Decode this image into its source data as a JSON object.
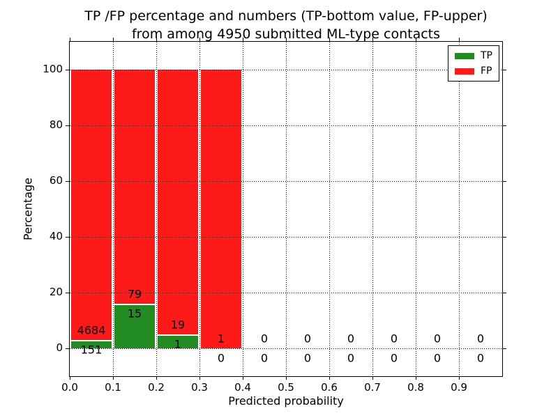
{
  "chart_data": {
    "type": "bar",
    "stacked": true,
    "normalized_per_bin_percent": true,
    "title_line1": "TP /FP percentage and numbers (TP-bottom value, FP-upper)",
    "title_line2": "from among 4950 submitted ML-type contacts",
    "xlabel": "Predicted probability",
    "ylabel": "Percentage",
    "x_tick_labels": [
      "0.0",
      "0.1",
      "0.2",
      "0.3",
      "0.4",
      "0.5",
      "0.6",
      "0.7",
      "0.8",
      "0.9"
    ],
    "y_ticks": [
      0,
      20,
      40,
      60,
      80,
      100
    ],
    "xlim": [
      0.0,
      1.0
    ],
    "ylim": [
      -10,
      110
    ],
    "bin_width": 0.1,
    "grid": true,
    "total_submitted": 4950,
    "legend": {
      "position": "upper right",
      "entries": [
        {
          "label": "TP",
          "color": "#228b22"
        },
        {
          "label": "FP",
          "color": "#ff1a1a"
        }
      ]
    },
    "bins": [
      {
        "x_start": 0.0,
        "x_end": 0.1,
        "tp": 151,
        "fp": 4684
      },
      {
        "x_start": 0.1,
        "x_end": 0.2,
        "tp": 15,
        "fp": 79
      },
      {
        "x_start": 0.2,
        "x_end": 0.3,
        "tp": 1,
        "fp": 19
      },
      {
        "x_start": 0.3,
        "x_end": 0.4,
        "tp": 0,
        "fp": 1
      },
      {
        "x_start": 0.4,
        "x_end": 0.5,
        "tp": 0,
        "fp": 0
      },
      {
        "x_start": 0.5,
        "x_end": 0.6,
        "tp": 0,
        "fp": 0
      },
      {
        "x_start": 0.6,
        "x_end": 0.7,
        "tp": 0,
        "fp": 0
      },
      {
        "x_start": 0.7,
        "x_end": 0.8,
        "tp": 0,
        "fp": 0
      },
      {
        "x_start": 0.8,
        "x_end": 0.9,
        "tp": 0,
        "fp": 0
      },
      {
        "x_start": 0.9,
        "x_end": 1.0,
        "tp": 0,
        "fp": 0
      }
    ],
    "count_label_offset_pct": 3.5
  }
}
